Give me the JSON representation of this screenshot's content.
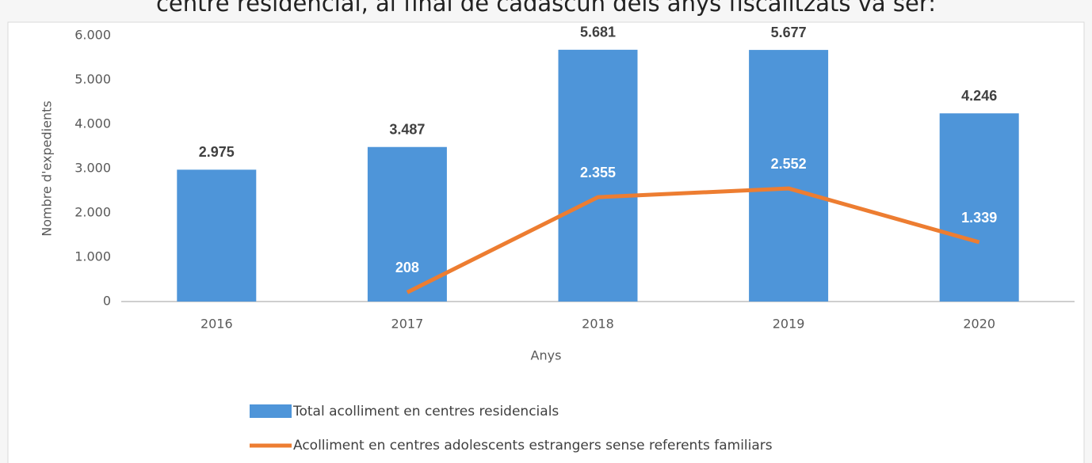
{
  "chart_data": {
    "type": "bar",
    "title": "centre residencial, al final de cadascun dels anys fiscalitzats va ser:",
    "x_label": "Anys",
    "y_label": "Nombre d'expedients",
    "categories": [
      "2016",
      "2017",
      "2018",
      "2019",
      "2020"
    ],
    "ylim": [
      0,
      6000
    ],
    "yticks": [
      {
        "value": 0,
        "label": "0"
      },
      {
        "value": 1000,
        "label": "1.000"
      },
      {
        "value": 2000,
        "label": "2.000"
      },
      {
        "value": 3000,
        "label": "3.000"
      },
      {
        "value": 4000,
        "label": "4.000"
      },
      {
        "value": 5000,
        "label": "5.000"
      },
      {
        "value": 6000,
        "label": "6.000"
      }
    ],
    "series": [
      {
        "name": "Total acolliment en centres residencials",
        "type": "bar",
        "color": "#4e95d9",
        "values": [
          2975,
          3487,
          5681,
          5677,
          4246
        ],
        "value_labels": [
          "2.975",
          "3.487",
          "5.681",
          "5.677",
          "4.246"
        ]
      },
      {
        "name": "Acolliment en centres adolescents estrangers sense referents familiars",
        "type": "line",
        "color": "#ed7d31",
        "values": [
          null,
          208,
          2355,
          2552,
          1339
        ],
        "value_labels": [
          null,
          "208",
          "2.355",
          "2.552",
          "1.339"
        ]
      }
    ]
  }
}
